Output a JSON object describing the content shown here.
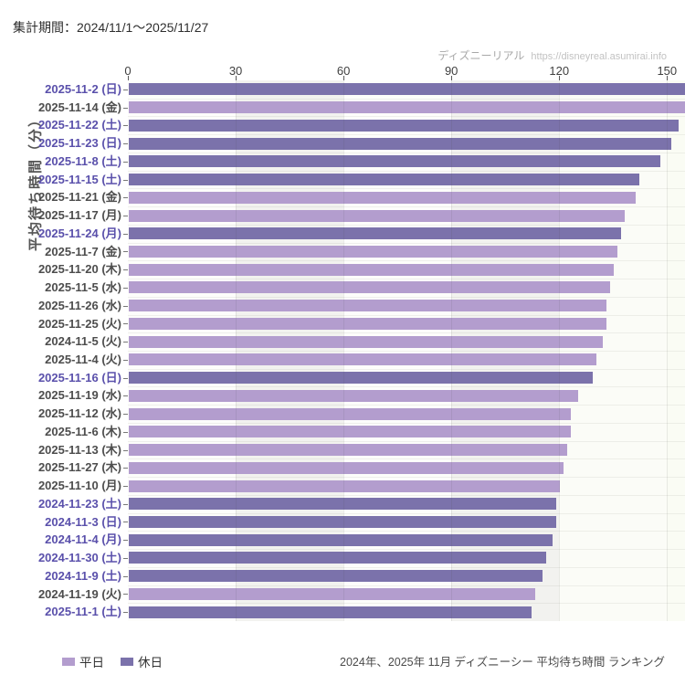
{
  "header": {
    "period_label": "集計期間：2024/11/1～2025/11/27"
  },
  "watermark": {
    "site_name": "ディズニーリアル",
    "site_url": "https://disneyreal.asumirai.info"
  },
  "footer": {
    "caption": "2024年、2025年 11月 ディズニーシー 平均待ち時間 ランキング"
  },
  "colors": {
    "weekday_bar": "#b39dce",
    "holiday_bar": "#7b72ab",
    "weekday_label": "#4d4d4d",
    "holiday_label": "#5a50ab",
    "stripe_gray": "#f2f2ef",
    "stripe_white": "#fdfdfb",
    "stripe_pale": "#fafcf4"
  },
  "chart_data": {
    "type": "bar",
    "orientation": "horizontal",
    "title": "2024年、2025年 11月 ディズニーシー 平均待ち時間 ランキング",
    "ylabel": "平均待ち時間（分）",
    "xlabel": "",
    "xlim": [
      0,
      155
    ],
    "x_ticks": [
      0,
      30,
      60,
      90,
      120,
      150
    ],
    "grid": true,
    "legend_position": "bottom-left",
    "legend": [
      {
        "label": "平日",
        "key": "weekday"
      },
      {
        "label": "休日",
        "key": "holiday"
      }
    ],
    "bars": [
      {
        "label": "2025-11-2 (日)",
        "value": 155,
        "series": "休日"
      },
      {
        "label": "2025-11-14 (金)",
        "value": 155,
        "series": "平日"
      },
      {
        "label": "2025-11-22 (土)",
        "value": 153,
        "series": "休日"
      },
      {
        "label": "2025-11-23 (日)",
        "value": 151,
        "series": "休日"
      },
      {
        "label": "2025-11-8 (土)",
        "value": 148,
        "series": "休日"
      },
      {
        "label": "2025-11-15 (土)",
        "value": 142,
        "series": "休日"
      },
      {
        "label": "2025-11-21 (金)",
        "value": 141,
        "series": "平日"
      },
      {
        "label": "2025-11-17 (月)",
        "value": 138,
        "series": "平日"
      },
      {
        "label": "2025-11-24 (月)",
        "value": 137,
        "series": "休日"
      },
      {
        "label": "2025-11-7 (金)",
        "value": 136,
        "series": "平日"
      },
      {
        "label": "2025-11-20 (木)",
        "value": 135,
        "series": "平日"
      },
      {
        "label": "2025-11-5 (水)",
        "value": 134,
        "series": "平日"
      },
      {
        "label": "2025-11-26 (水)",
        "value": 133,
        "series": "平日"
      },
      {
        "label": "2025-11-25 (火)",
        "value": 133,
        "series": "平日"
      },
      {
        "label": "2024-11-5 (火)",
        "value": 132,
        "series": "平日"
      },
      {
        "label": "2025-11-4 (火)",
        "value": 130,
        "series": "平日"
      },
      {
        "label": "2025-11-16 (日)",
        "value": 129,
        "series": "休日"
      },
      {
        "label": "2025-11-19 (水)",
        "value": 125,
        "series": "平日"
      },
      {
        "label": "2025-11-12 (水)",
        "value": 123,
        "series": "平日"
      },
      {
        "label": "2025-11-6 (木)",
        "value": 123,
        "series": "平日"
      },
      {
        "label": "2025-11-13 (木)",
        "value": 122,
        "series": "平日"
      },
      {
        "label": "2025-11-27 (木)",
        "value": 121,
        "series": "平日"
      },
      {
        "label": "2025-11-10 (月)",
        "value": 120,
        "series": "平日"
      },
      {
        "label": "2024-11-23 (土)",
        "value": 119,
        "series": "休日"
      },
      {
        "label": "2024-11-3 (日)",
        "value": 119,
        "series": "休日"
      },
      {
        "label": "2024-11-4 (月)",
        "value": 118,
        "series": "休日"
      },
      {
        "label": "2024-11-30 (土)",
        "value": 116,
        "series": "休日"
      },
      {
        "label": "2024-11-9 (土)",
        "value": 115,
        "series": "休日"
      },
      {
        "label": "2024-11-19 (火)",
        "value": 113,
        "series": "平日"
      },
      {
        "label": "2025-11-1 (土)",
        "value": 112,
        "series": "休日"
      }
    ]
  }
}
